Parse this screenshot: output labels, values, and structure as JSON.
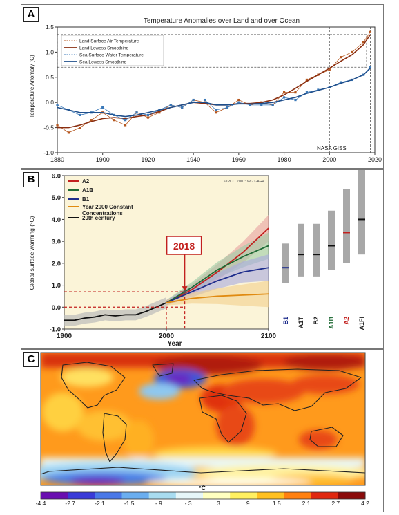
{
  "panels": {
    "A": {
      "label": "A"
    },
    "B": {
      "label": "B"
    },
    "C": {
      "label": "C"
    }
  },
  "chart_data": [
    {
      "type": "line",
      "title": "Temperature Anomalies over Land and over Ocean",
      "ylabel": "Temperature Anomaly (C)",
      "xlim": [
        1880,
        2020
      ],
      "ylim": [
        -1.0,
        1.5
      ],
      "xticks": [
        "1880",
        "1900",
        "1920",
        "1940",
        "1960",
        "1980",
        "2000",
        "2020"
      ],
      "yticks": [
        "-1.0",
        "-0.5",
        "0.0",
        "0.5",
        "1.0",
        "1.5"
      ],
      "annotation": "NASA GISS",
      "legend": [
        "Land Surface Air Temperature",
        "Land Lowess Smoothing",
        "Sea Surface Water Temperature",
        "Sea Lowess Smoothing"
      ],
      "colors": {
        "land": "#b5561e",
        "land_smooth": "#8a2e10",
        "sea": "#3a78b8",
        "sea_smooth": "#1f4f8c"
      },
      "x": [
        1880,
        1885,
        1890,
        1895,
        1900,
        1905,
        1910,
        1915,
        1920,
        1925,
        1930,
        1935,
        1940,
        1945,
        1950,
        1955,
        1960,
        1965,
        1970,
        1975,
        1980,
        1985,
        1990,
        1995,
        2000,
        2005,
        2010,
        2015,
        2018
      ],
      "series": [
        {
          "name": "Land Surface Air Temperature",
          "values": [
            -0.45,
            -0.6,
            -0.5,
            -0.35,
            -0.2,
            -0.35,
            -0.45,
            -0.2,
            -0.3,
            -0.2,
            -0.05,
            -0.1,
            0.05,
            0.0,
            -0.2,
            -0.1,
            0.05,
            -0.05,
            0.0,
            -0.05,
            0.2,
            0.2,
            0.45,
            0.55,
            0.65,
            0.9,
            1.0,
            1.2,
            1.4
          ]
        },
        {
          "name": "Land Lowess Smoothing",
          "values": [
            -0.5,
            -0.5,
            -0.45,
            -0.38,
            -0.32,
            -0.3,
            -0.32,
            -0.28,
            -0.25,
            -0.18,
            -0.1,
            -0.05,
            0.0,
            -0.02,
            -0.05,
            -0.05,
            -0.02,
            -0.02,
            0.0,
            0.05,
            0.15,
            0.28,
            0.42,
            0.55,
            0.68,
            0.82,
            0.95,
            1.15,
            1.35
          ]
        },
        {
          "name": "Sea Surface Water Temperature",
          "values": [
            -0.05,
            -0.15,
            -0.25,
            -0.2,
            -0.1,
            -0.25,
            -0.35,
            -0.2,
            -0.25,
            -0.15,
            -0.05,
            -0.1,
            0.05,
            0.05,
            -0.15,
            -0.1,
            0.0,
            -0.05,
            -0.05,
            -0.05,
            0.1,
            0.05,
            0.2,
            0.25,
            0.3,
            0.4,
            0.45,
            0.55,
            0.7
          ]
        },
        {
          "name": "Sea Lowess Smoothing",
          "values": [
            -0.1,
            -0.15,
            -0.2,
            -0.2,
            -0.2,
            -0.25,
            -0.28,
            -0.25,
            -0.2,
            -0.15,
            -0.1,
            -0.05,
            0.0,
            0.0,
            -0.05,
            -0.05,
            -0.03,
            -0.03,
            -0.02,
            0.0,
            0.05,
            0.1,
            0.18,
            0.24,
            0.3,
            0.38,
            0.45,
            0.55,
            0.68
          ]
        }
      ]
    },
    {
      "type": "line",
      "copyright": "©IPCC 2007: WG1-AR4",
      "ylabel": "Global surface warming (°C)",
      "xlabel": "Year",
      "xlim": [
        1900,
        2100
      ],
      "ylim": [
        -1.0,
        6.0
      ],
      "xticks": [
        "1900",
        "2000",
        "2100"
      ],
      "yticks": [
        "-1.0",
        "0.0",
        "1.0",
        "2.0",
        "3.0",
        "4.0",
        "5.0",
        "6.0"
      ],
      "highlight": "2018",
      "legend": [
        "A2",
        "A1B",
        "B1",
        "Year 2000 Constant Concentrations",
        "20th century"
      ],
      "colors": {
        "A2": "#c2201e",
        "A1B": "#1f6a35",
        "B1": "#1e2d8c",
        "constant": "#e08a10",
        "century": "#111111"
      },
      "history": {
        "x": [
          1900,
          1910,
          1920,
          1930,
          1940,
          1950,
          1960,
          1970,
          1980,
          1990,
          2000
        ],
        "values": [
          -0.6,
          -0.6,
          -0.5,
          -0.45,
          -0.35,
          -0.4,
          -0.35,
          -0.35,
          -0.2,
          0.0,
          0.2
        ]
      },
      "scenarios": [
        {
          "name": "A2",
          "x": [
            2000,
            2025,
            2050,
            2075,
            2100
          ],
          "values": [
            0.2,
            0.8,
            1.6,
            2.5,
            3.6
          ]
        },
        {
          "name": "A1B",
          "x": [
            2000,
            2025,
            2050,
            2075,
            2100
          ],
          "values": [
            0.2,
            0.9,
            1.7,
            2.3,
            2.8
          ]
        },
        {
          "name": "B1",
          "x": [
            2000,
            2025,
            2050,
            2075,
            2100
          ],
          "values": [
            0.2,
            0.7,
            1.2,
            1.6,
            1.8
          ]
        },
        {
          "name": "Year 2000 Constant Concentrations",
          "x": [
            2000,
            2025,
            2050,
            2075,
            2100
          ],
          "values": [
            0.2,
            0.4,
            0.5,
            0.55,
            0.6
          ]
        }
      ],
      "ranges": [
        {
          "name": "B1",
          "low": 1.1,
          "high": 2.9,
          "best": 1.8
        },
        {
          "name": "A1T",
          "low": 1.4,
          "high": 3.8,
          "best": 2.4
        },
        {
          "name": "B2",
          "low": 1.4,
          "high": 3.8,
          "best": 2.4
        },
        {
          "name": "A1B",
          "low": 1.7,
          "high": 4.4,
          "best": 2.8
        },
        {
          "name": "A2",
          "low": 2.0,
          "high": 5.4,
          "best": 3.4
        },
        {
          "name": "A1FI",
          "low": 2.4,
          "high": 6.4,
          "best": 4.0
        }
      ]
    },
    {
      "type": "heatmap",
      "unit": "°C",
      "colorbar_ticks": [
        "-4.4",
        "-2.7",
        "-2.1",
        "-1.5",
        "-.9",
        "-.3",
        ".3",
        ".9",
        "1.5",
        "2.1",
        "2.7",
        "4.2"
      ],
      "colorbar_colors": [
        "#6a0fb0",
        "#3a3ad8",
        "#4a78e8",
        "#6aaef0",
        "#a8dcf0",
        "#e6f6f8",
        "#ffffc0",
        "#fff060",
        "#ffc020",
        "#ff8010",
        "#e02810",
        "#8a0a0a"
      ]
    }
  ]
}
